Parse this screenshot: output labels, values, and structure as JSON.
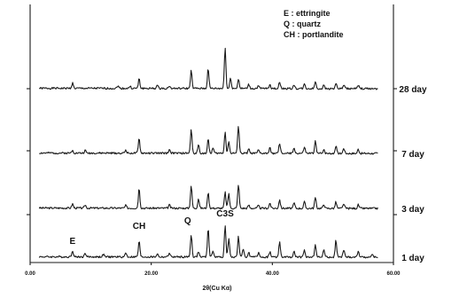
{
  "chart_data": {
    "type": "line",
    "title": "",
    "xlabel": "2θ(Cu Kα)",
    "ylabel": "",
    "xlim": [
      0,
      60
    ],
    "x_ticks": [
      "0.00",
      "20.00",
      "40.00",
      "60.00"
    ],
    "grid": false,
    "legend": {
      "placement": "top-right",
      "entries": [
        "E : ettringite",
        "Q : quartz",
        "CH : portlandite"
      ]
    },
    "series": [
      {
        "name": "28 day",
        "baseline": 0.16,
        "noise_seed": 1,
        "peaks": [
          [
            7,
            0.1
          ],
          [
            14.5,
            0.05
          ],
          [
            16.5,
            0.04
          ],
          [
            18,
            0.18
          ],
          [
            21,
            0.06
          ],
          [
            23,
            0.05
          ],
          [
            26.6,
            0.33
          ],
          [
            29.4,
            0.38
          ],
          [
            32.2,
            0.78
          ],
          [
            33.1,
            0.2
          ],
          [
            34.4,
            0.18
          ],
          [
            36.1,
            0.08
          ],
          [
            37.7,
            0.05
          ],
          [
            39.6,
            0.08
          ],
          [
            41.2,
            0.13
          ],
          [
            43.6,
            0.07
          ],
          [
            45.3,
            0.08
          ],
          [
            47.1,
            0.13
          ],
          [
            48.5,
            0.06
          ],
          [
            50.5,
            0.1
          ],
          [
            51.8,
            0.07
          ],
          [
            54.2,
            0.06
          ]
        ]
      },
      {
        "name": "7 day",
        "baseline": 0.16,
        "noise_seed": 2,
        "peaks": [
          [
            7,
            0.06
          ],
          [
            9.1,
            0.05
          ],
          [
            15.8,
            0.06
          ],
          [
            18,
            0.28
          ],
          [
            23,
            0.07
          ],
          [
            26.6,
            0.44
          ],
          [
            27.8,
            0.16
          ],
          [
            29.4,
            0.26
          ],
          [
            30.2,
            0.1
          ],
          [
            32.2,
            0.4
          ],
          [
            32.8,
            0.22
          ],
          [
            34.4,
            0.52
          ],
          [
            36.1,
            0.08
          ],
          [
            37.7,
            0.06
          ],
          [
            39.6,
            0.1
          ],
          [
            41.2,
            0.18
          ],
          [
            43.6,
            0.1
          ],
          [
            45.3,
            0.12
          ],
          [
            47.1,
            0.22
          ],
          [
            48.5,
            0.08
          ],
          [
            50.5,
            0.14
          ],
          [
            51.8,
            0.1
          ],
          [
            54.2,
            0.08
          ]
        ]
      },
      {
        "name": "3 day",
        "baseline": 0.16,
        "noise_seed": 3,
        "peaks": [
          [
            7,
            0.08
          ],
          [
            9.1,
            0.06
          ],
          [
            15.8,
            0.05
          ],
          [
            18,
            0.38
          ],
          [
            23,
            0.06
          ],
          [
            26.6,
            0.42
          ],
          [
            27.8,
            0.18
          ],
          [
            29.4,
            0.3
          ],
          [
            32.2,
            0.3
          ],
          [
            32.8,
            0.28
          ],
          [
            34.4,
            0.45
          ],
          [
            36.1,
            0.06
          ],
          [
            37.7,
            0.05
          ],
          [
            39.6,
            0.1
          ],
          [
            41.2,
            0.16
          ],
          [
            43.6,
            0.1
          ],
          [
            45.3,
            0.12
          ],
          [
            47.1,
            0.2
          ],
          [
            48.5,
            0.08
          ],
          [
            50.5,
            0.12
          ],
          [
            51.8,
            0.09
          ],
          [
            54.2,
            0.07
          ]
        ]
      },
      {
        "name": "1 day",
        "baseline": 0.16,
        "noise_seed": 4,
        "peaks": [
          [
            7,
            0.12
          ],
          [
            9.1,
            0.07
          ],
          [
            12.1,
            0.05
          ],
          [
            15.8,
            0.08
          ],
          [
            18,
            0.3
          ],
          [
            21,
            0.06
          ],
          [
            23,
            0.08
          ],
          [
            26.6,
            0.42
          ],
          [
            27.8,
            0.1
          ],
          [
            29.4,
            0.55
          ],
          [
            30.2,
            0.12
          ],
          [
            32.2,
            0.6
          ],
          [
            32.8,
            0.35
          ],
          [
            34.4,
            0.38
          ],
          [
            35.2,
            0.15
          ],
          [
            36.1,
            0.1
          ],
          [
            37.7,
            0.08
          ],
          [
            39.6,
            0.1
          ],
          [
            41.2,
            0.28
          ],
          [
            43.6,
            0.1
          ],
          [
            45.3,
            0.14
          ],
          [
            47.1,
            0.25
          ],
          [
            48.5,
            0.14
          ],
          [
            50.5,
            0.32
          ],
          [
            51.8,
            0.14
          ],
          [
            54.2,
            0.12
          ],
          [
            56.5,
            0.06
          ]
        ]
      }
    ],
    "annotations": [
      {
        "text": "E",
        "x": 7
      },
      {
        "text": "CH",
        "x": 18
      },
      {
        "text": "Q",
        "x": 26.6
      },
      {
        "text": "C3S",
        "x": 32.2
      }
    ]
  }
}
